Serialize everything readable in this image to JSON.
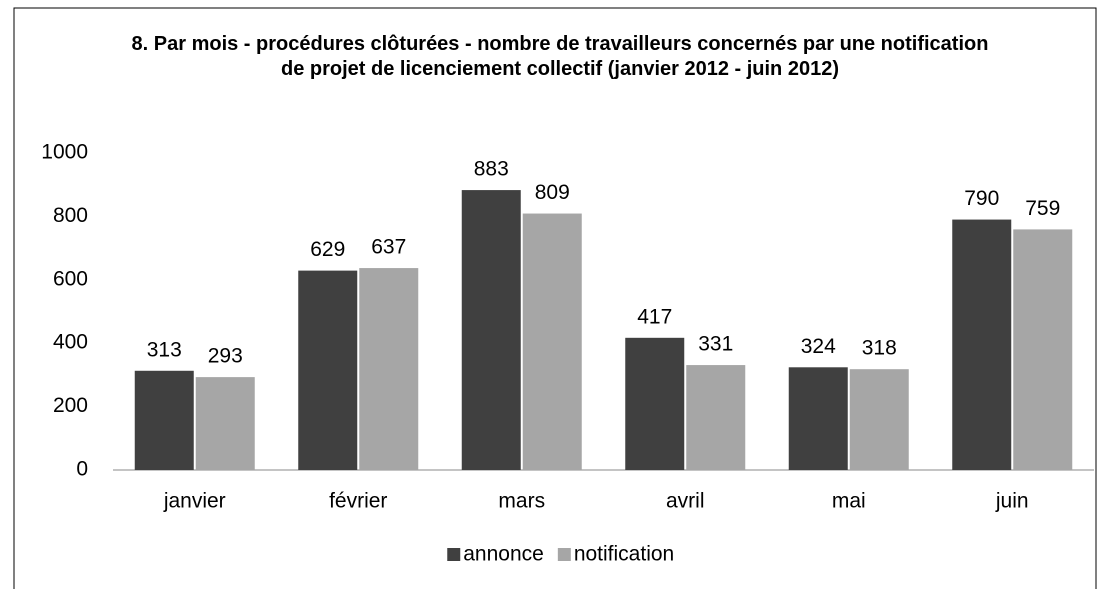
{
  "chart_data": {
    "type": "bar",
    "title": "8. Par mois - procédures clôturées - nombre de travailleurs concernés par une notification de projet de licenciement collectif (janvier 2012 - juin 2012)",
    "categories": [
      "janvier",
      "février",
      "mars",
      "avril",
      "mai",
      "juin"
    ],
    "series": [
      {
        "name": "annonce",
        "color": "#404040",
        "values": [
          313,
          629,
          883,
          417,
          324,
          790
        ]
      },
      {
        "name": "notification",
        "color": "#a6a6a6",
        "values": [
          293,
          637,
          809,
          331,
          318,
          759
        ]
      }
    ],
    "ylim": [
      0,
      1000
    ],
    "yticks": [
      0,
      200,
      400,
      600,
      800,
      1000
    ],
    "grid": false,
    "legend": "bottom"
  }
}
